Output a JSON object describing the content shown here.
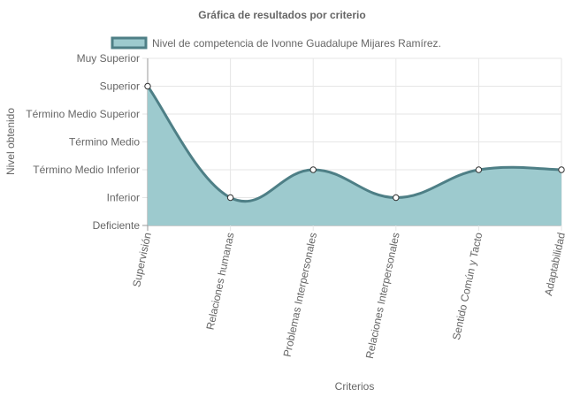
{
  "chart_data": {
    "type": "area",
    "title": "Gráfica de resultados por criterio",
    "xlabel": "Criterios",
    "ylabel": "Nivel obtenido",
    "y_levels": [
      "Deficiente",
      "Inferior",
      "Término Medio Inferior",
      "Término Medio",
      "Término Medio Superior",
      "Superior",
      "Muy Superior"
    ],
    "categories": [
      "Supervisión",
      "Relaciones humanas",
      "Problemas Interpersonales",
      "Relaciones Interpersonales",
      "Sentido Común y Tacto",
      "Adaptabilidad"
    ],
    "series": [
      {
        "name": "Nivel de competencia de Ivonne Guadalupe Mijares Ramírez.",
        "values": [
          5,
          1,
          2,
          1,
          2,
          2
        ]
      }
    ],
    "ylim": [
      0,
      6
    ],
    "legend_position": "top",
    "grid": true,
    "colors": {
      "line": "#4e7f86",
      "fill": "#9dcace",
      "point_fill": "#ffffff",
      "grid": "#e6e6e6",
      "axis": "#999999"
    }
  }
}
